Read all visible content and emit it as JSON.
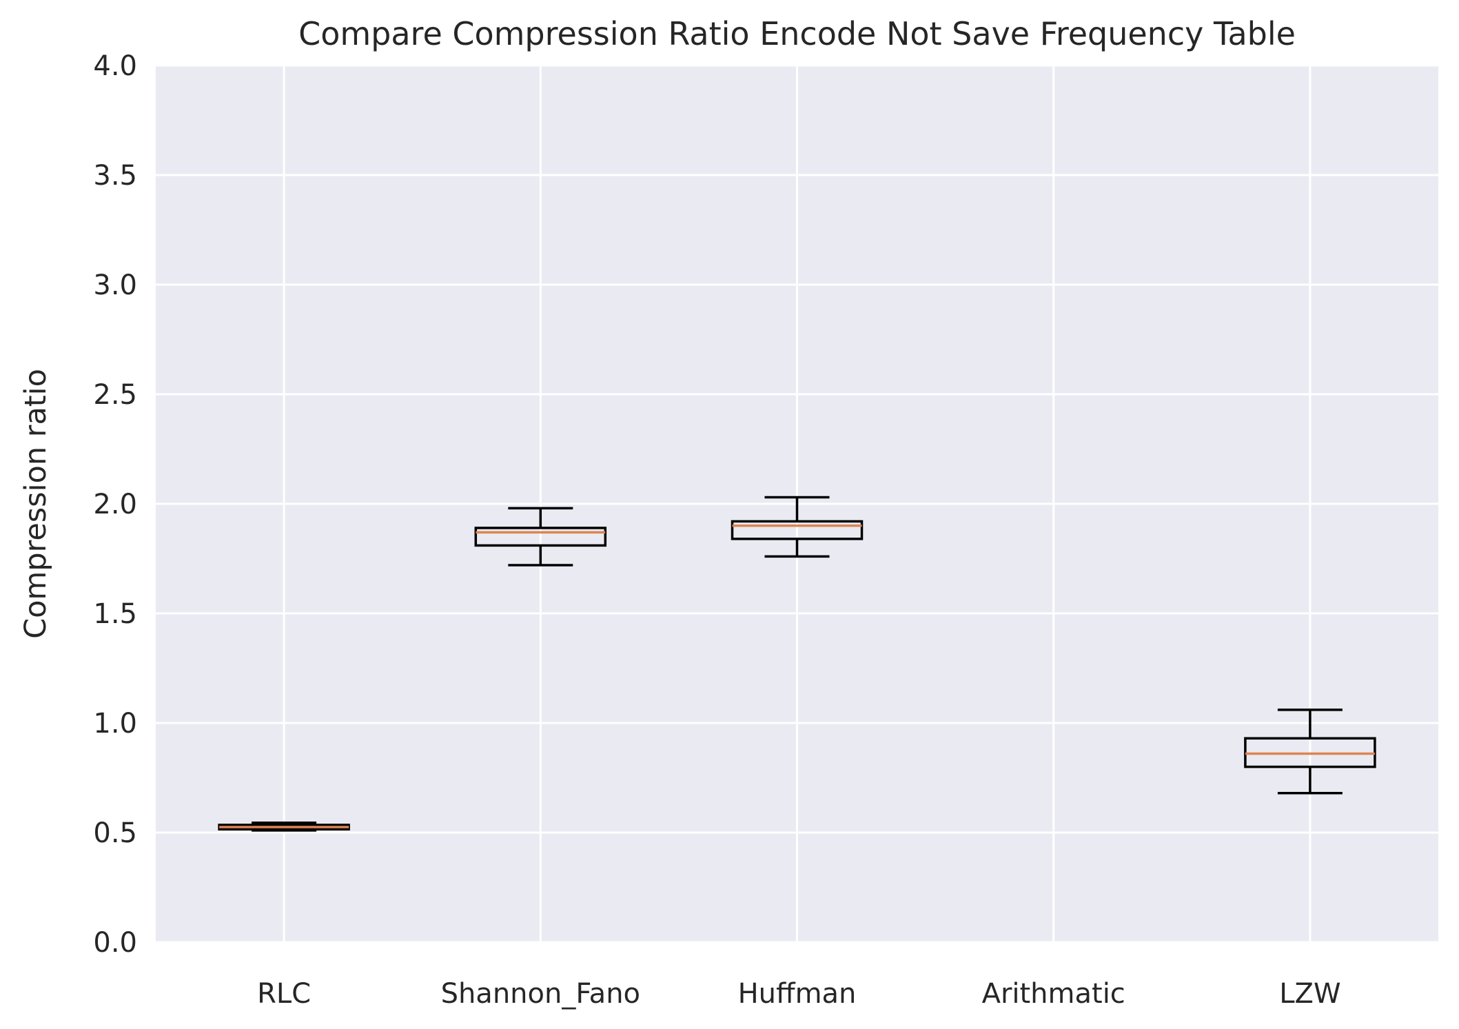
{
  "chart_data": {
    "type": "box",
    "title": "Compare Compression Ratio Encode Not Save Frequency Table",
    "xlabel": "",
    "ylabel": "Compression ratio",
    "ylim": [
      0,
      4
    ],
    "yticks": [
      "0.0",
      "0.5",
      "1.0",
      "1.5",
      "2.0",
      "2.5",
      "3.0",
      "3.5",
      "4.0"
    ],
    "categories": [
      "RLC",
      "Shannon_Fano",
      "Huffman",
      "Arithmatic",
      "LZW"
    ],
    "boxes": [
      {
        "category": "RLC",
        "whislo": 0.51,
        "q1": 0.515,
        "med": 0.525,
        "q3": 0.535,
        "whishi": 0.545
      },
      {
        "category": "Shannon_Fano",
        "whislo": 1.72,
        "q1": 1.81,
        "med": 1.87,
        "q3": 1.89,
        "whishi": 1.98
      },
      {
        "category": "Huffman",
        "whislo": 1.76,
        "q1": 1.84,
        "med": 1.9,
        "q3": 1.92,
        "whishi": 2.03
      },
      {
        "category": "Arithmatic",
        "whislo": null,
        "q1": null,
        "med": null,
        "q3": null,
        "whishi": null
      },
      {
        "category": "LZW",
        "whislo": 0.68,
        "q1": 0.8,
        "med": 0.86,
        "q3": 0.93,
        "whishi": 1.06
      }
    ],
    "grid": true,
    "colors": {
      "background": "#eaeaf2",
      "grid": "#ffffff",
      "box": "#000000",
      "median": "#dd8452"
    }
  }
}
